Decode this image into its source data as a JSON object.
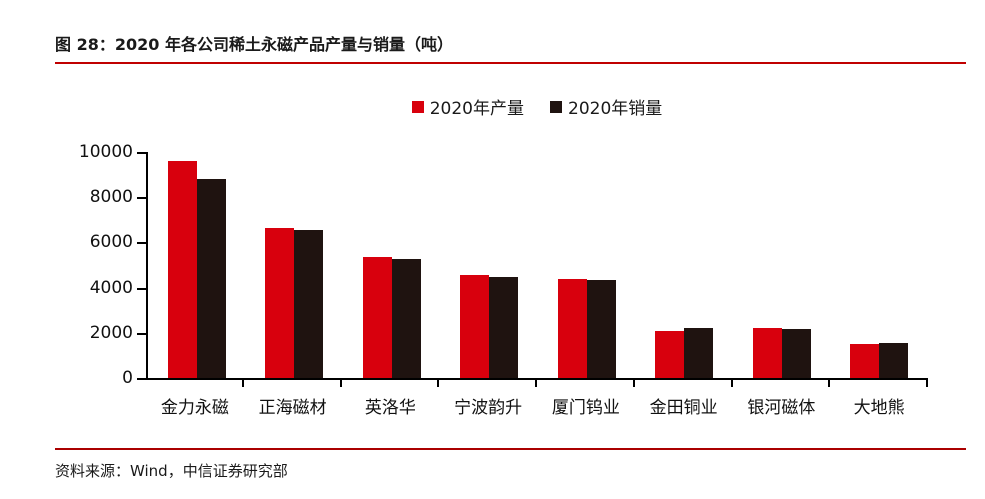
{
  "figure": {
    "title": "图 28：2020 年各公司稀土永磁产品产量与销量（吨）"
  },
  "source": {
    "text": "资料来源：Wind，中信证券研究部"
  },
  "colors": {
    "production_red": "#d8000d",
    "sales_black": "#1f1310",
    "title_rule": "#c00000",
    "footer_rule": "#aa0000",
    "axis": "#000000"
  },
  "chart_data": {
    "type": "bar",
    "title": "图 28：2020 年各公司稀土永磁产品产量与销量（吨）",
    "categories": [
      "金力永磁",
      "正海磁材",
      "英洛华",
      "宁波韵升",
      "厦门钨业",
      "金田铜业",
      "银河磁体",
      "大地熊"
    ],
    "series": [
      {
        "name": "2020年产量",
        "color": "#d8000d",
        "values": [
          9600,
          6650,
          5350,
          4550,
          4400,
          2100,
          2200,
          1500
        ]
      },
      {
        "name": "2020年销量",
        "color": "#1f1310",
        "values": [
          8800,
          6550,
          5250,
          4450,
          4350,
          2200,
          2150,
          1550
        ]
      }
    ],
    "xlabel": "",
    "ylabel": "",
    "unit": "吨",
    "ylim": [
      0,
      10000
    ],
    "ytick_step": 2000,
    "yticks": [
      0,
      2000,
      4000,
      6000,
      8000,
      10000
    ],
    "legend_position": "top-center",
    "grid": false
  }
}
